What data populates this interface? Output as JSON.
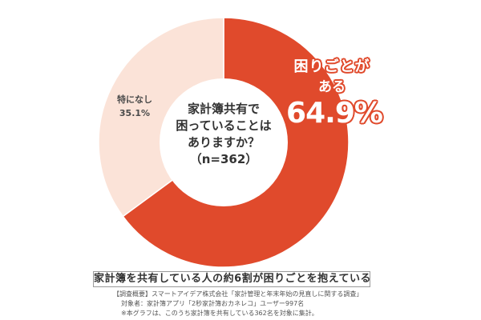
{
  "chart_data": {
    "type": "pie",
    "variant": "donut",
    "title": "家計簿共有で困っていることはありますか？",
    "sample_size": "(n=362)",
    "categories": [
      "困りごとがある",
      "特になし"
    ],
    "values": [
      64.9,
      35.1
    ],
    "unit": "%",
    "colors": [
      "#e04a2c",
      "#fbe3d8"
    ],
    "start_angle_deg": 0,
    "direction": "clockwise",
    "legend": "none (direct labels)"
  },
  "center": {
    "line1": "家計簿共有で",
    "line2": "困っていることは",
    "line3": "ありますか？",
    "line4": "（n=362）"
  },
  "labels": {
    "yes": {
      "line1": "困りごとが",
      "line2": "ある",
      "value": "64.9%"
    },
    "none": {
      "line1": "特になし",
      "value": "35.1%"
    }
  },
  "caption": "家計簿を共有している人の約6割が困りごとを抱えている",
  "notes": {
    "line1": "【調査概要】スマートアイデア株式会社「家計管理と年末年始の見直しに関する調査」",
    "line2": "対象者：家計簿アプリ「2秒家計簿おカネレコ」ユーザー997名",
    "line3": "※本グラフは、このうち家計簿を共有している362名を対象に集計。"
  },
  "colors": {
    "accent": "#e04a2c",
    "light": "#fbe3d8",
    "text": "#333333"
  }
}
